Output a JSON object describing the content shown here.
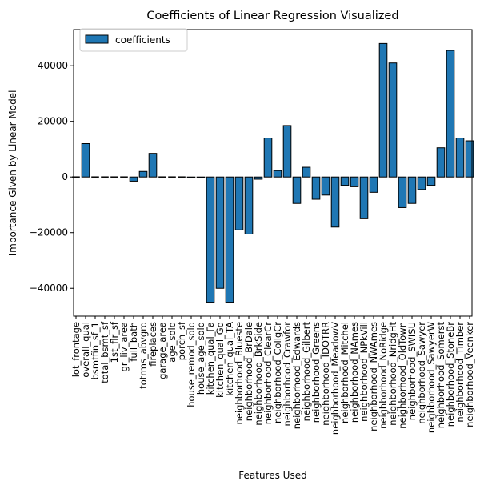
{
  "chart_data": {
    "type": "bar",
    "title": "Coefficients of Linear Regression Visualized",
    "xlabel": "Features Used",
    "ylabel": "Importance Given by Linear Model",
    "ylim": [
      -50000,
      53000
    ],
    "yticks": [
      -40000,
      -20000,
      0,
      20000,
      40000
    ],
    "grid": false,
    "legend_position": "top-left",
    "series": [
      {
        "name": "coefficients",
        "color": "#1f77b4",
        "edgecolor": "#000000",
        "values": [
          0,
          12000,
          0,
          0,
          0,
          0,
          -1500,
          2000,
          8500,
          0,
          0,
          0,
          -300,
          -300,
          -45000,
          -40000,
          -45000,
          -19000,
          -20500,
          -800,
          14000,
          2300,
          18500,
          -9500,
          3500,
          -8000,
          -6500,
          -18000,
          -3000,
          -3500,
          -15000,
          -5500,
          48000,
          41000,
          -11000,
          -9500,
          -4500,
          -3000,
          10500,
          45500,
          14000,
          13000
        ]
      }
    ],
    "categories": [
      "lot_frontage",
      "overall_qual",
      "bsmtfin_sf_1",
      "total_bsmt_sf",
      "1st_flr_sf",
      "gr_liv_area",
      "full_bath",
      "totrms_abvgrd",
      "fireplaces",
      "garage_area",
      "age_sold",
      "porch_sf",
      "house_remod_sold",
      "house_age_sold",
      "kitchen_qual_Fa",
      "kitchen_qual_Gd",
      "kitchen_qual_TA",
      "neighborhood_Blueste",
      "neighborhood_BrDale",
      "neighborhood_BrkSide",
      "neighborhood_ClearCr",
      "neighborhood_CollgCr",
      "neighborhood_Crawfor",
      "neighborhood_Edwards",
      "neighborhood_Gilbert",
      "neighborhood_Greens",
      "neighborhood_IDOTRR",
      "neighborhood_MeadowV",
      "neighborhood_Mitchel",
      "neighborhood_NAmes",
      "neighborhood_NPkVill",
      "neighborhood_NWAmes",
      "neighborhood_NoRidge",
      "neighborhood_NridgHt",
      "neighborhood_OldTown",
      "neighborhood_SWISU",
      "neighborhood_Sawyer",
      "neighborhood_SawyerW",
      "neighborhood_Somerst",
      "neighborhood_StoneBr",
      "neighborhood_Timber",
      "neighborhood_Veenker"
    ]
  }
}
